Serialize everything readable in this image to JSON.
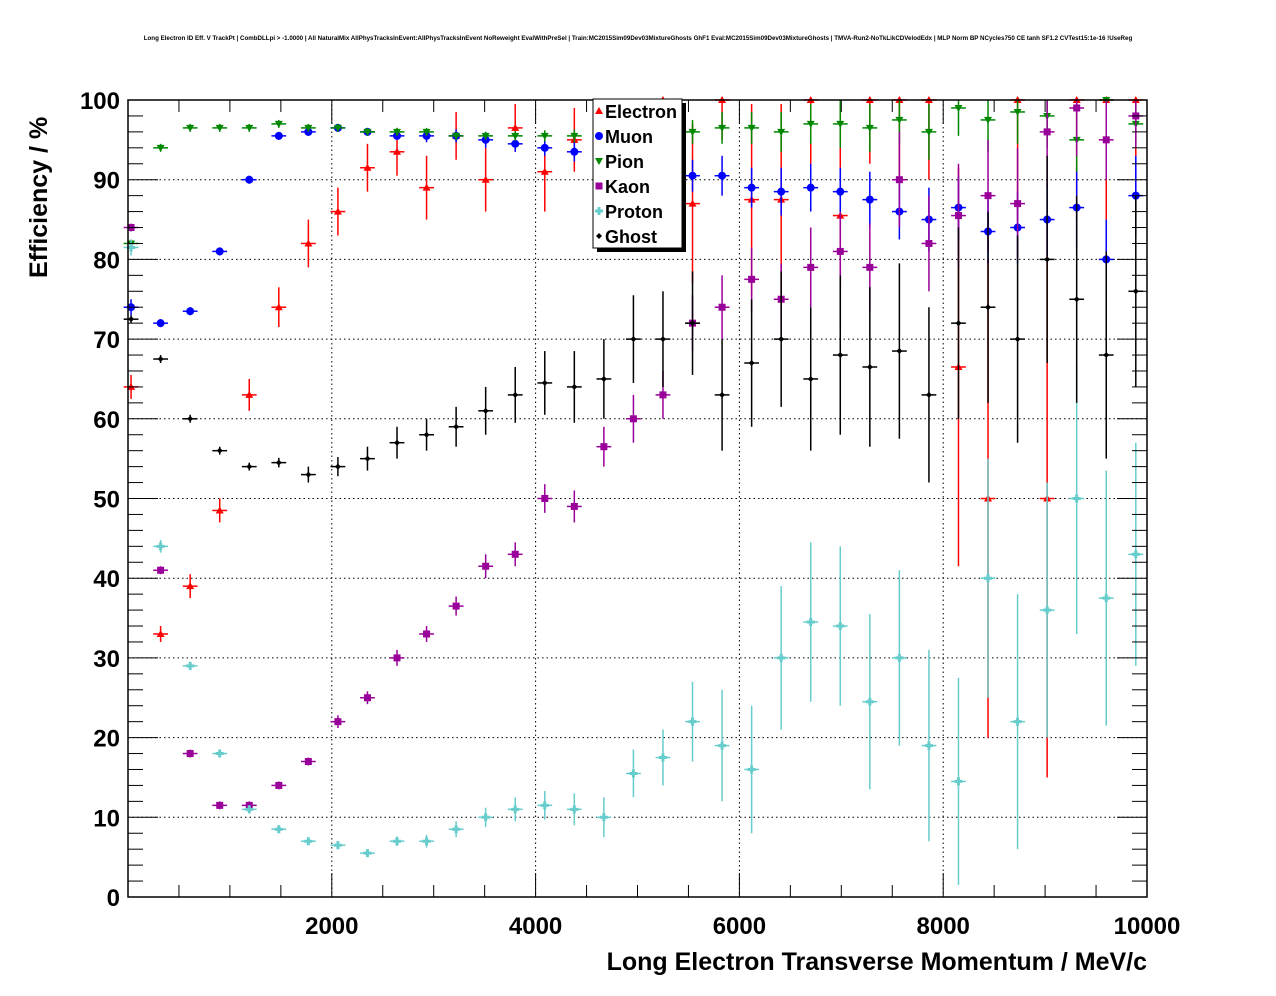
{
  "chart_data": {
    "type": "scatter",
    "title": "Long Electron ID Eff. V TrackPt | CombDLLpi > -1.0000 | All NaturalMix AllPhysTracksInEvent:AllPhysTracksInEvent NoReweight EvalWithPreSel | Train:MC2015Sim09Dev03MixtureGhosts GhF1 Eval:MC2015Sim09Dev03MixtureGhosts | TMVA-Run2-NoTkLikCDVelodEdx | MLP Norm BP NCycles750 CE tanh SF1.2 CVTest15:1e-16 !UseReg",
    "xlabel": "Long Electron Transverse Momentum / MeV/c",
    "ylabel": "Efficiency / %",
    "xlim": [
      0,
      10000
    ],
    "ylim": [
      0,
      100
    ],
    "xticks": [
      2000,
      4000,
      6000,
      8000,
      10000
    ],
    "xtick_labels": [
      "2000",
      "4000",
      "6000",
      "8000",
      "10000"
    ],
    "yticks": [
      0,
      10,
      20,
      30,
      40,
      50,
      60,
      70,
      80,
      90,
      100
    ],
    "ytick_labels": [
      "0",
      "10",
      "20",
      "30",
      "40",
      "50",
      "60",
      "70",
      "80",
      "90",
      "100"
    ],
    "grid": true,
    "legend_position": "top-center",
    "x": [
      30,
      320,
      610,
      900,
      1190,
      1480,
      1770,
      2060,
      2350,
      2640,
      2930,
      3220,
      3510,
      3800,
      4090,
      4380,
      4670,
      4960,
      5250,
      5540,
      5830,
      6120,
      6410,
      6700,
      6990,
      7280,
      7570,
      7860,
      8150,
      8440,
      8730,
      9020,
      9310,
      9600,
      9890
    ],
    "series": [
      {
        "name": "Electron",
        "color": "#ff0000",
        "marker": "triangle-up",
        "values": [
          64,
          33,
          39,
          48.5,
          63,
          74,
          82,
          86,
          91.5,
          93.5,
          89,
          95.5,
          90,
          96.5,
          91,
          95,
          92,
          95,
          100,
          87,
          100,
          87.5,
          87.5,
          100,
          85.5,
          100,
          100,
          100,
          66.5,
          50,
          100,
          50,
          100,
          100,
          100
        ],
        "errors": [
          1.5,
          1,
          1.5,
          1.5,
          2,
          2.5,
          3,
          3,
          3,
          3,
          4,
          3,
          4,
          3,
          5,
          4,
          5,
          4,
          5,
          10,
          5,
          12,
          12,
          8,
          14,
          8,
          10,
          10,
          25,
          30,
          15,
          35,
          15,
          15,
          15
        ]
      },
      {
        "name": "Muon",
        "color": "#0000ff",
        "marker": "circle",
        "values": [
          74,
          72,
          73.5,
          81,
          90,
          95.5,
          96,
          96.5,
          96,
          95.5,
          95.5,
          95.5,
          95,
          94.5,
          94,
          93.5,
          93,
          92,
          91,
          90.5,
          90.5,
          89,
          88.5,
          89,
          88.5,
          87.5,
          86,
          85,
          86.5,
          83.5,
          84,
          85,
          86.5,
          80,
          88
        ],
        "errors": [
          1,
          0.5,
          0.5,
          0.5,
          0.5,
          0.5,
          0.5,
          0.5,
          0.5,
          0.5,
          0.8,
          0.8,
          1,
          1,
          1,
          1.2,
          1.5,
          1.5,
          2,
          2,
          2.5,
          2.5,
          3,
          3,
          3,
          3.5,
          3.5,
          4,
          4,
          4,
          4.5,
          4.5,
          5,
          5,
          5
        ]
      },
      {
        "name": "Pion",
        "color": "#008800",
        "marker": "triangle-down",
        "values": [
          82,
          94,
          96.5,
          96.5,
          96.5,
          97,
          96.5,
          96.5,
          96,
          96,
          96,
          95.5,
          95.5,
          95.5,
          95.5,
          95.5,
          95,
          95.5,
          96,
          96,
          96.5,
          96.5,
          96,
          97,
          97,
          96.5,
          97.5,
          96,
          99,
          97.5,
          98.5,
          98,
          95,
          100,
          97
        ],
        "errors": [
          0.5,
          0.5,
          0.5,
          0.5,
          0.5,
          0.5,
          0.5,
          0.5,
          0.5,
          0.5,
          0.5,
          0.5,
          0.5,
          0.6,
          0.7,
          0.8,
          1,
          1.2,
          1.5,
          1.5,
          2,
          2,
          2.5,
          2.5,
          3,
          3,
          3,
          3.5,
          3.5,
          4,
          4,
          4,
          4,
          3,
          3
        ]
      },
      {
        "name": "Kaon",
        "color": "#990099",
        "marker": "square",
        "values": [
          84,
          41,
          18,
          11.5,
          11.5,
          14,
          17,
          22,
          25,
          30,
          33,
          36.5,
          41.5,
          43,
          50,
          49,
          56.5,
          60,
          63,
          72,
          74,
          77.5,
          75,
          79,
          81,
          79,
          90,
          82,
          85.5,
          88,
          87,
          96,
          99,
          95,
          98
        ],
        "errors": [
          0.5,
          0.5,
          0.5,
          0.5,
          0.5,
          0.5,
          0.5,
          0.8,
          0.8,
          1,
          1,
          1.2,
          1.5,
          1.5,
          1.8,
          2,
          2.5,
          3,
          3,
          3.5,
          4,
          4,
          4.5,
          5,
          5,
          5.5,
          6,
          6,
          6.5,
          7,
          7,
          7,
          6,
          5,
          4
        ]
      },
      {
        "name": "Proton",
        "color": "#66cccc",
        "marker": "cross",
        "values": [
          81.5,
          44,
          29,
          18,
          11,
          8.5,
          7,
          6.5,
          5.5,
          7,
          7,
          8.5,
          10,
          11,
          11.5,
          11,
          10,
          15.5,
          17.5,
          22,
          19,
          16,
          30,
          34.5,
          34,
          24.5,
          30,
          19,
          14.5,
          40,
          22,
          36,
          50,
          37.5,
          43
        ],
        "errors": [
          1,
          0.8,
          0.5,
          0.5,
          0.5,
          0.5,
          0.5,
          0.5,
          0.5,
          0.6,
          0.8,
          1,
          1.2,
          1.5,
          1.8,
          2,
          2.5,
          3,
          3.5,
          5,
          7,
          8,
          9,
          10,
          10,
          11,
          11,
          12,
          13,
          15,
          16,
          16,
          17,
          16,
          14
        ]
      },
      {
        "name": "Ghost",
        "color": "#000000",
        "marker": "diamond",
        "values": [
          72.5,
          67.5,
          60,
          56,
          54,
          54.5,
          53,
          54,
          55,
          57,
          58,
          59,
          61,
          63,
          64.5,
          64,
          65,
          70,
          70,
          72,
          63,
          67,
          70,
          65,
          68,
          66.5,
          68.5,
          63,
          72,
          74,
          70,
          80,
          75,
          68,
          76
        ],
        "errors": [
          0.5,
          0.5,
          0.5,
          0.5,
          0.5,
          0.6,
          1,
          1.2,
          1.5,
          2,
          2,
          2.5,
          3,
          3.5,
          4,
          4.5,
          5,
          5.5,
          6,
          6.5,
          7,
          8,
          8.5,
          9,
          10,
          10,
          11,
          11,
          12,
          12,
          13,
          13,
          13,
          13,
          12
        ]
      }
    ]
  }
}
